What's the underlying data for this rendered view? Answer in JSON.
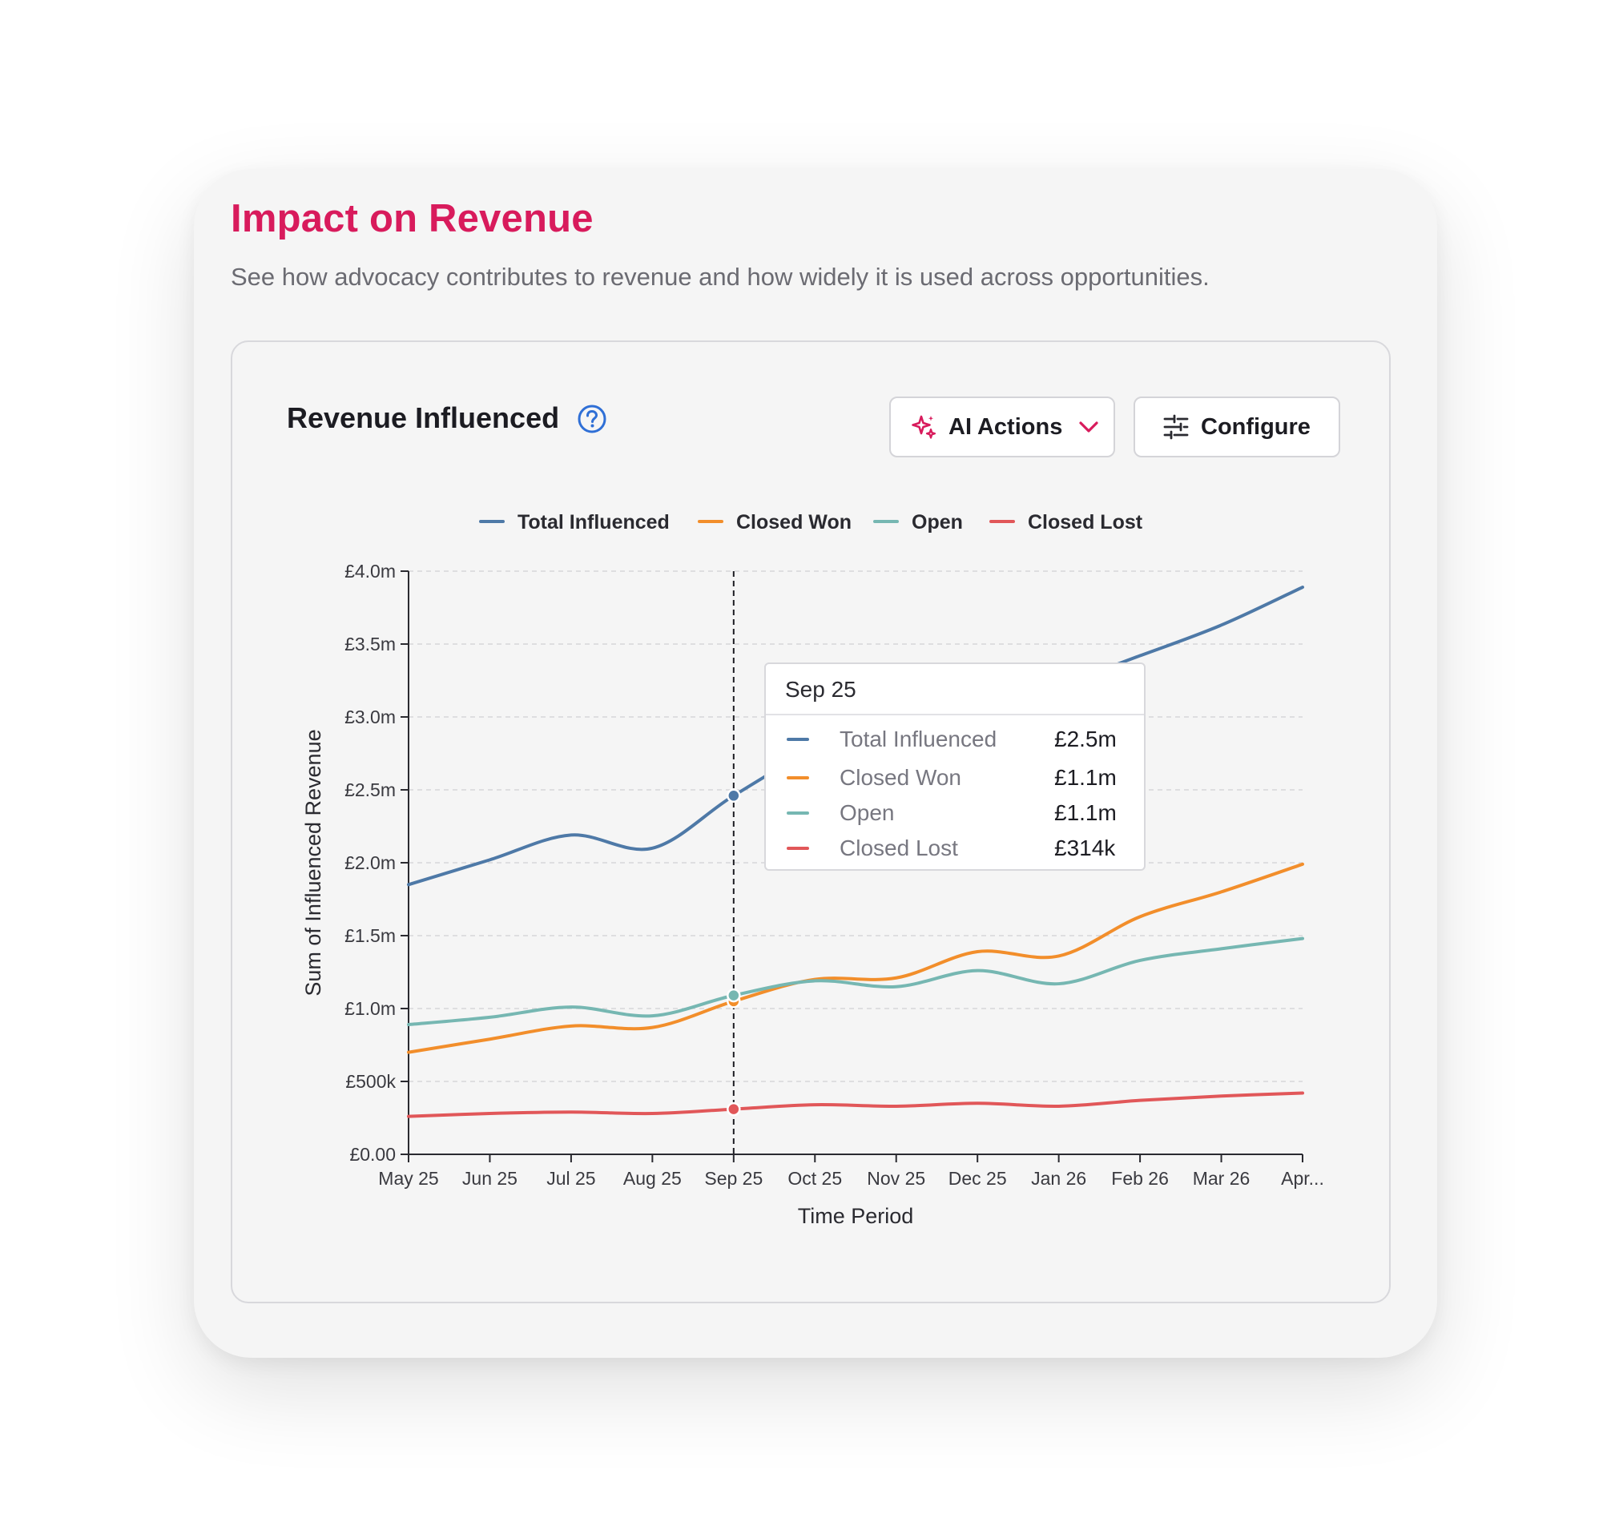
{
  "header": {
    "title": "Impact on Revenue",
    "subtitle": "See how advocacy contributes to revenue and how widely it is used across opportunities."
  },
  "card": {
    "title": "Revenue Influenced",
    "help_icon": "question-circle-icon",
    "ai_actions_label": "AI Actions",
    "ai_actions_icon": "sparkle-icon",
    "configure_label": "Configure",
    "configure_icon": "sliders-icon"
  },
  "tooltip": {
    "title": "Sep 25",
    "rows": [
      {
        "label": "Total Influenced",
        "value": "£2.5m",
        "color": "#4e79a7"
      },
      {
        "label": "Closed Won",
        "value": "£1.1m",
        "color": "#f28e2b"
      },
      {
        "label": "Open",
        "value": "£1.1m",
        "color": "#76b7b2"
      },
      {
        "label": "Closed Lost",
        "value": "£314k",
        "color": "#e15759"
      }
    ]
  },
  "colors": {
    "accent": "#d81b5c",
    "total_influenced": "#4e79a7",
    "closed_won": "#f28e2b",
    "open": "#76b7b2",
    "closed_lost": "#e15759",
    "help_icon": "#2f6fd6"
  },
  "chart_data": {
    "type": "line",
    "xlabel": "Time Period",
    "ylabel": "Sum of Influenced Revenue",
    "categories": [
      "May 25",
      "Jun 25",
      "Jul 25",
      "Aug 25",
      "Sep 25",
      "Oct 25",
      "Nov 25",
      "Dec 25",
      "Jan 26",
      "Feb 26",
      "Mar 26",
      "Apr..."
    ],
    "ylim": [
      0,
      4000000
    ],
    "yticks": [
      0,
      500000,
      1000000,
      1500000,
      2000000,
      2500000,
      3000000,
      3500000,
      4000000
    ],
    "ytick_labels": [
      "£0.00",
      "£500k",
      "£1.0m",
      "£1.5m",
      "£2.0m",
      "£2.5m",
      "£3.0m",
      "£3.5m",
      "£4.0m"
    ],
    "grid": true,
    "legend_position": "top-center",
    "highlighted_category": "Sep 25",
    "series": [
      {
        "name": "Total Influenced",
        "color": "#4e79a7",
        "values": [
          1850000,
          2020000,
          2190000,
          2100000,
          2460000,
          2770000,
          2900000,
          3080000,
          3220000,
          3420000,
          3630000,
          3890000
        ]
      },
      {
        "name": "Closed Won",
        "color": "#f28e2b",
        "values": [
          700000,
          790000,
          880000,
          870000,
          1050000,
          1200000,
          1210000,
          1390000,
          1360000,
          1630000,
          1800000,
          1990000
        ]
      },
      {
        "name": "Open",
        "color": "#76b7b2",
        "values": [
          890000,
          940000,
          1010000,
          950000,
          1090000,
          1190000,
          1150000,
          1260000,
          1170000,
          1330000,
          1410000,
          1480000
        ]
      },
      {
        "name": "Closed Lost",
        "color": "#e15759",
        "values": [
          260000,
          280000,
          290000,
          280000,
          310000,
          340000,
          330000,
          350000,
          330000,
          370000,
          400000,
          420000
        ]
      }
    ]
  }
}
